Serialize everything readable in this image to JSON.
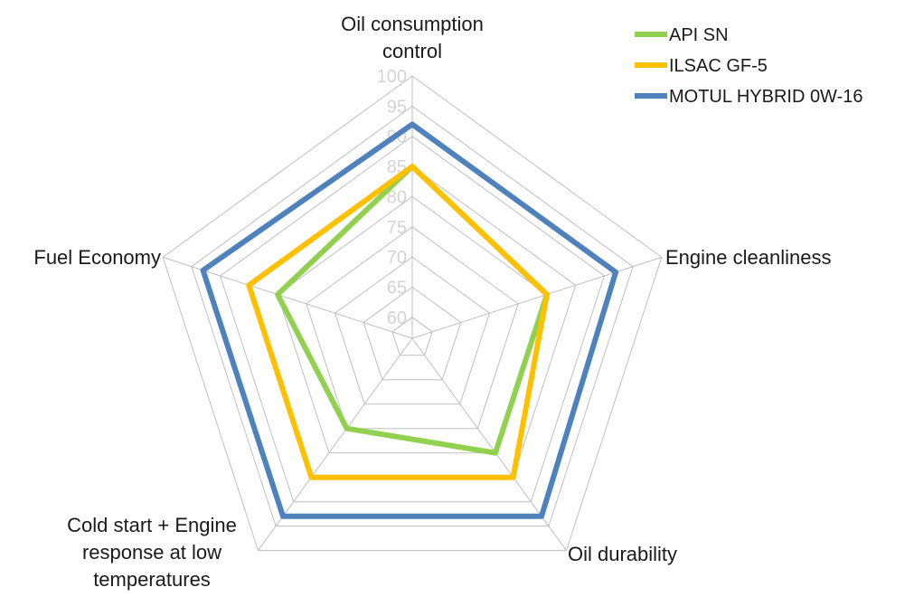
{
  "chart_data": {
    "type": "radar",
    "axes": [
      [
        "Oil consumption",
        "control"
      ],
      [
        "Engine cleanliness"
      ],
      [
        "Oil durability"
      ],
      [
        "Cold start + Engine",
        "response at low",
        "temperatures"
      ],
      [
        "Fuel Economy"
      ]
    ],
    "rlim": [
      60,
      100
    ],
    "ticks": [
      60,
      65,
      70,
      75,
      80,
      85,
      90,
      95,
      100
    ],
    "grid": true,
    "legend_position": "top-right",
    "series": [
      {
        "name": "API SN",
        "color": "#92d050",
        "values": [
          85,
          80,
          80,
          75,
          80
        ]
      },
      {
        "name": "ILSAC GF-5",
        "color": "#ffc000",
        "values": [
          85,
          80,
          85,
          85,
          85
        ]
      },
      {
        "name": "MOTUL HYBRID 0W-16",
        "color": "#4f81bd",
        "values": [
          92,
          92,
          93,
          93,
          93
        ]
      }
    ]
  }
}
